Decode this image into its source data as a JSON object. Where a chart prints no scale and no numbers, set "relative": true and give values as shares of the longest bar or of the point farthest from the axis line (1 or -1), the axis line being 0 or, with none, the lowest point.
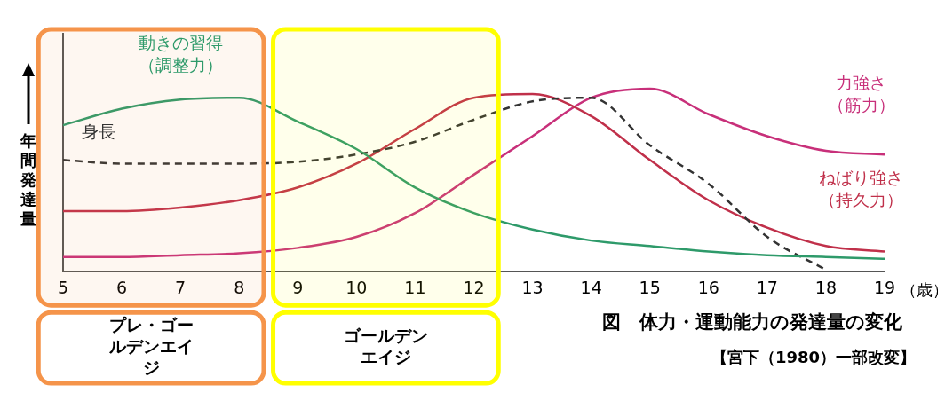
{
  "chart_data": {
    "type": "line",
    "relative": true,
    "title": "図　体力・運動能力の発達量の変化",
    "xlabel": "（歳）",
    "ylabel": "年間発達量",
    "categories": [
      "5",
      "6",
      "7",
      "8",
      "9",
      "10",
      "11",
      "12",
      "13",
      "14",
      "15",
      "16",
      "17",
      "18",
      "19"
    ],
    "series": [
      {
        "name": "動きの習得（調整力）",
        "color": "#2e9a6a",
        "values": [
          0.8,
          0.89,
          0.94,
          0.95,
          0.82,
          0.67,
          0.46,
          0.32,
          0.23,
          0.17,
          0.14,
          0.11,
          0.09,
          0.08,
          0.07
        ]
      },
      {
        "name": "身長",
        "color": "#333333",
        "line_style": "dashed",
        "values": [
          0.61,
          0.59,
          0.59,
          0.59,
          0.6,
          0.64,
          0.71,
          0.83,
          0.93,
          0.95,
          0.69,
          0.48,
          0.19,
          0.01,
          null
        ]
      },
      {
        "name": "ねばり強さ（持久力）",
        "color": "#c0304a",
        "values": [
          0.33,
          0.33,
          0.35,
          0.39,
          0.46,
          0.59,
          0.78,
          0.95,
          0.97,
          0.85,
          0.61,
          0.39,
          0.24,
          0.14,
          0.11
        ]
      },
      {
        "name": "力強さ（筋力）",
        "color": "#c8307a",
        "values": [
          0.08,
          0.08,
          0.09,
          0.1,
          0.13,
          0.19,
          0.32,
          0.53,
          0.74,
          0.95,
          1,
          0.86,
          0.74,
          0.66,
          0.64
        ]
      }
    ],
    "bands": [
      {
        "axis": "x",
        "from": "5",
        "to": "8",
        "label": "プレ・ゴールデンエイジ",
        "color": "#f5944a"
      },
      {
        "axis": "x",
        "from": "9",
        "to": "12",
        "label": "ゴールデンエイジ",
        "color": "#ffff00"
      }
    ],
    "annotations": [
      "【宮下（1980）一部改変】"
    ],
    "grid": false,
    "legend": false,
    "marker": "none"
  }
}
